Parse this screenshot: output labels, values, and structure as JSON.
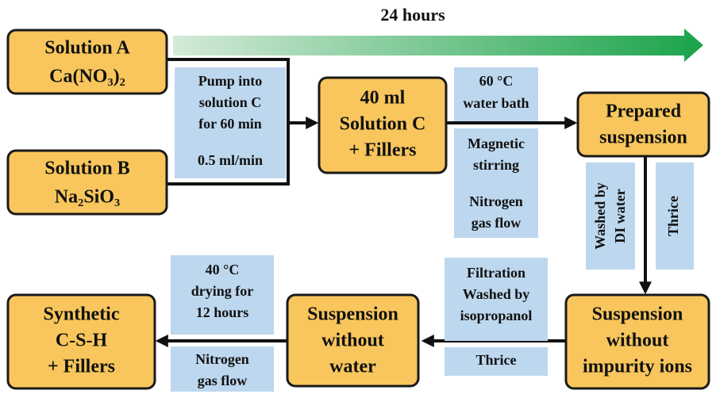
{
  "header": {
    "title": "24 hours"
  },
  "nodes": [
    {
      "lines": [
        "Solution A",
        "Ca(NO₃)₂"
      ]
    },
    {
      "lines": [
        "Solution B",
        "Na₂SiO₃"
      ]
    },
    {
      "lines": [
        "40 ml",
        "Solution C",
        "+  Fillers"
      ]
    },
    {
      "lines": [
        "Prepared",
        "suspension"
      ]
    },
    {
      "lines": [
        "Suspension",
        "without",
        "impurity ions"
      ]
    },
    {
      "lines": [
        "Suspension",
        "without",
        "water"
      ]
    },
    {
      "lines": [
        "Synthetic",
        "C-S-H",
        "+  Fillers"
      ]
    }
  ],
  "notes": [
    {
      "lines": [
        "Pump into",
        "solution C",
        "for 60 min",
        "0.5 ml/min"
      ]
    },
    {
      "lines": [
        "60 °C",
        "water bath"
      ]
    },
    {
      "lines": [
        "Magnetic",
        "stirring",
        "Nitrogen",
        "gas flow"
      ]
    },
    {
      "lines": [
        "Washed by",
        "DI water"
      ]
    },
    {
      "lines": [
        "Thrice"
      ]
    },
    {
      "lines": [
        "Filtration",
        "Washed by",
        "isopropanol"
      ]
    },
    {
      "lines": [
        "Thrice"
      ]
    },
    {
      "lines": [
        "40 °C",
        "drying for",
        "12 hours"
      ]
    },
    {
      "lines": [
        "Nitrogen",
        "gas flow"
      ]
    }
  ]
}
